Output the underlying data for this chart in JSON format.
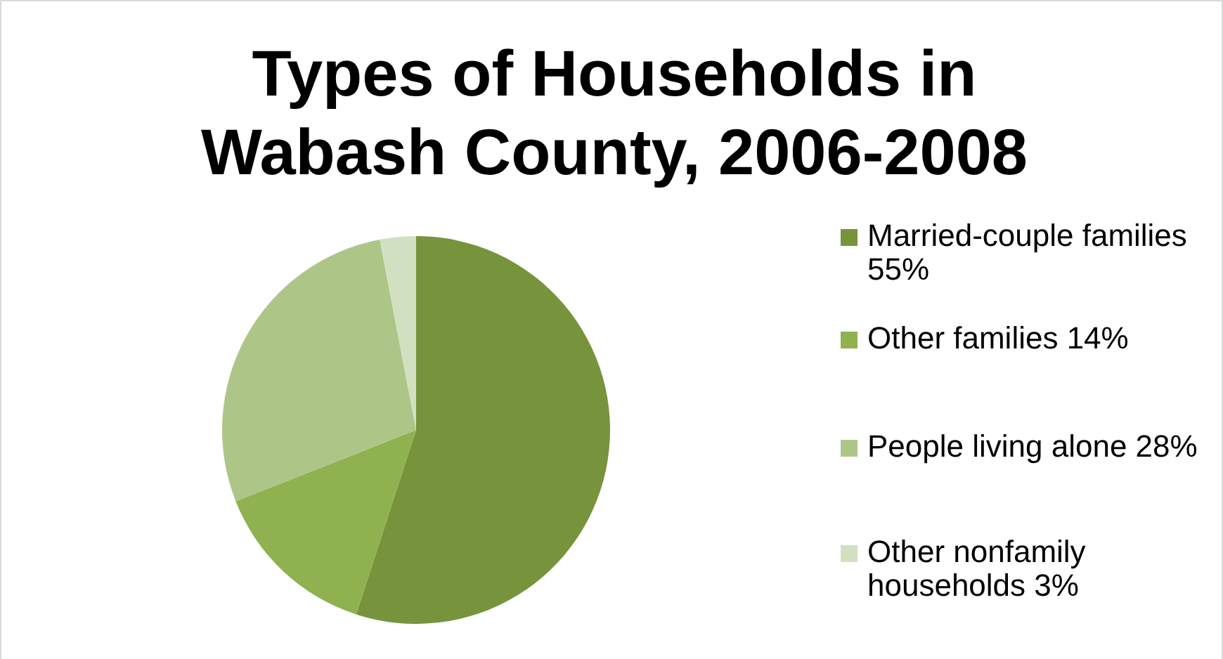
{
  "chart_data": {
    "type": "pie",
    "title": "Types of Households in Wabash County, 2006-2008",
    "categories": [
      "Married-couple families 55%",
      "Other families 14%",
      "People living alone 28%",
      "Other nonfamily households 3%"
    ],
    "values": [
      55,
      14,
      28,
      3
    ],
    "colors": [
      "#77933c",
      "#8fb150",
      "#adc687",
      "#d2e0c2"
    ],
    "legend": "right"
  }
}
